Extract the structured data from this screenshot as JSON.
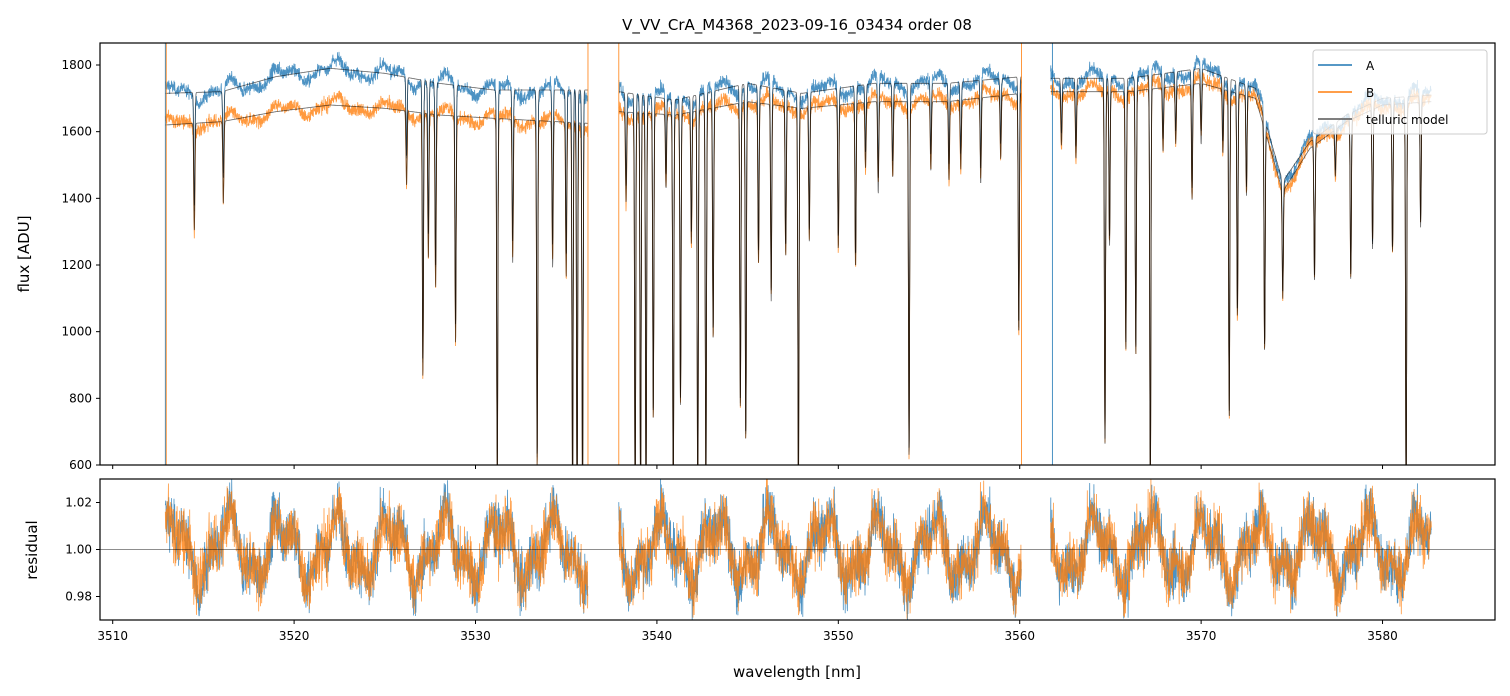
{
  "chart_data": {
    "type": "line",
    "title": "V_VV_CrA_M4368_2023-09-16_03434  order 08",
    "xlabel": "wavelength [nm]",
    "xlim": [
      3509.3,
      3586.2
    ],
    "xticks": [
      3510,
      3520,
      3530,
      3540,
      3550,
      3560,
      3570,
      3580
    ],
    "panels": [
      {
        "ylabel": "flux [ADU]",
        "ylim": [
          600,
          1866
        ],
        "yticks": [
          600,
          800,
          1000,
          1200,
          1400,
          1600,
          1800
        ],
        "yticklabels": [
          "600",
          "800",
          "1000",
          "1200",
          "1400",
          "1600",
          "1800"
        ]
      },
      {
        "ylabel": "residual",
        "ylim": [
          0.97,
          1.03
        ],
        "yticks": [
          0.98,
          1.0,
          1.02
        ],
        "yticklabels": [
          "0.98",
          "1.00",
          "1.02"
        ],
        "hline": 1.0
      }
    ],
    "legend": {
      "placement": "top-right",
      "entries": [
        "A",
        "B",
        "telluric model"
      ]
    },
    "colors": {
      "A": "#1f77b4",
      "B": "#ff7f0e",
      "model": "#000000"
    },
    "segments": [
      [
        3512.9,
        3536.2
      ],
      [
        3537.9,
        3560.1
      ],
      [
        3561.7,
        3582.7
      ]
    ],
    "continuum": {
      "A": [
        [
          3512.9,
          1715
        ],
        [
          3516,
          1720
        ],
        [
          3519,
          1765
        ],
        [
          3522,
          1790
        ],
        [
          3525,
          1775
        ],
        [
          3528,
          1745
        ],
        [
          3531,
          1725
        ],
        [
          3536.2,
          1725
        ],
        [
          3537.9,
          1720
        ],
        [
          3541,
          1695
        ],
        [
          3545,
          1745
        ],
        [
          3548,
          1715
        ],
        [
          3552,
          1745
        ],
        [
          3556,
          1745
        ],
        [
          3560.1,
          1765
        ],
        [
          3561.7,
          1760
        ],
        [
          3566,
          1760
        ],
        [
          3570,
          1790
        ],
        [
          3573,
          1730
        ],
        [
          3574.5,
          1450
        ],
        [
          3576,
          1570
        ],
        [
          3578,
          1650
        ],
        [
          3580,
          1700
        ],
        [
          3582.7,
          1710
        ]
      ],
      "B": [
        [
          3512.9,
          1620
        ],
        [
          3516,
          1630
        ],
        [
          3519,
          1660
        ],
        [
          3522,
          1680
        ],
        [
          3525,
          1670
        ],
        [
          3528,
          1650
        ],
        [
          3531,
          1640
        ],
        [
          3536.2,
          1625
        ],
        [
          3537.9,
          1660
        ],
        [
          3541,
          1650
        ],
        [
          3545,
          1690
        ],
        [
          3548,
          1670
        ],
        [
          3552,
          1690
        ],
        [
          3556,
          1690
        ],
        [
          3560.1,
          1715
        ],
        [
          3561.7,
          1720
        ],
        [
          3566,
          1720
        ],
        [
          3570,
          1745
        ],
        [
          3573,
          1700
        ],
        [
          3574.5,
          1420
        ],
        [
          3576,
          1550
        ],
        [
          3578,
          1630
        ],
        [
          3580,
          1680
        ],
        [
          3582.7,
          1690
        ]
      ]
    },
    "absorption_lines_center_minflux": [
      [
        3514.5,
        1370
      ],
      [
        3516.1,
        1450
      ],
      [
        3526.2,
        1480
      ],
      [
        3527.1,
        890
      ],
      [
        3527.4,
        1260
      ],
      [
        3527.8,
        1170
      ],
      [
        3528.9,
        1000
      ],
      [
        3531.2,
        560
      ],
      [
        3532.05,
        1260
      ],
      [
        3533.4,
        620
      ],
      [
        3534.25,
        1250
      ],
      [
        3535.0,
        1220
      ],
      [
        3535.35,
        500
      ],
      [
        3535.6,
        500
      ],
      [
        3535.9,
        500
      ],
      [
        3538.3,
        1430
      ],
      [
        3538.8,
        500
      ],
      [
        3539.1,
        500
      ],
      [
        3539.4,
        500
      ],
      [
        3539.8,
        760
      ],
      [
        3540.5,
        1480
      ],
      [
        3540.9,
        500
      ],
      [
        3541.3,
        800
      ],
      [
        3541.9,
        1300
      ],
      [
        3542.25,
        500
      ],
      [
        3542.7,
        500
      ],
      [
        3543.1,
        1000
      ],
      [
        3544.6,
        780
      ],
      [
        3544.9,
        680
      ],
      [
        3545.6,
        1220
      ],
      [
        3546.3,
        1110
      ],
      [
        3547.1,
        1250
      ],
      [
        3547.8,
        500
      ],
      [
        3548.4,
        1300
      ],
      [
        3550.0,
        1270
      ],
      [
        3550.95,
        1210
      ],
      [
        3551.5,
        1510
      ],
      [
        3552.2,
        1430
      ],
      [
        3553.0,
        1480
      ],
      [
        3553.9,
        630
      ],
      [
        3555.1,
        1500
      ],
      [
        3556.1,
        1470
      ],
      [
        3556.75,
        1500
      ],
      [
        3557.85,
        1450
      ],
      [
        3558.95,
        1520
      ],
      [
        3559.95,
        990
      ],
      [
        3562.3,
        1550
      ],
      [
        3563.1,
        1510
      ],
      [
        3564.7,
        660
      ],
      [
        3564.95,
        1250
      ],
      [
        3565.85,
        940
      ],
      [
        3566.4,
        920
      ],
      [
        3567.2,
        500
      ],
      [
        3567.9,
        1520
      ],
      [
        3568.6,
        1540
      ],
      [
        3569.5,
        1370
      ],
      [
        3570.0,
        1530
      ],
      [
        3571.2,
        1520
      ],
      [
        3571.55,
        740
      ],
      [
        3572.0,
        1040
      ],
      [
        3572.5,
        1410
      ],
      [
        3573.5,
        1000
      ],
      [
        3574.5,
        1320
      ],
      [
        3576.25,
        1260
      ],
      [
        3577.4,
        1560
      ],
      [
        3578.25,
        1210
      ],
      [
        3579.45,
        1280
      ],
      [
        3580.55,
        1260
      ],
      [
        3581.3,
        500
      ],
      [
        3582.1,
        1330
      ]
    ],
    "residual_scatter": 0.01
  }
}
